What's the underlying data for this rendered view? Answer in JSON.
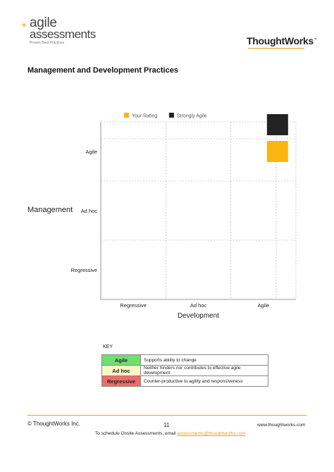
{
  "header": {
    "logo_plus": "+",
    "logo_line1": "agile",
    "logo_line2": "assessments",
    "logo_tagline": "Proven Best Practices",
    "company_logo": "ThoughtWorks",
    "company_logo_tm": "™"
  },
  "section_title": "Management and Development Practices",
  "chart_data": {
    "type": "scatter",
    "xlabel": "Development",
    "ylabel": "Management",
    "categories_x": [
      "Regressive",
      "Ad hoc",
      "Agile"
    ],
    "categories_y": [
      "Regressive",
      "Ad hoc",
      "Agile"
    ],
    "series": [
      {
        "name": "Your Rating",
        "color": "#fbb511",
        "points": [
          {
            "x": "Agile",
            "y": "Agile"
          }
        ]
      },
      {
        "name": "Strongly Agile",
        "color": "#232323",
        "points": [
          {
            "x": "Agile",
            "y": "Agile"
          }
        ]
      }
    ],
    "legend_position": "top",
    "grid": true
  },
  "key": {
    "label": "KEY",
    "rows": [
      {
        "name": "Agile",
        "description": "Supports ability to change",
        "color": "#6fe06f"
      },
      {
        "name": "Ad hoc",
        "description": "Neither hinders nor contributes to effective agile development",
        "color": "#fbf8c8"
      },
      {
        "name": "Regressive",
        "description": "Counter-productive to agility and responsiveness",
        "color": "#f06a6a"
      }
    ]
  },
  "footer": {
    "copyright": "© ThoughtWorks Inc.",
    "page_number": "11",
    "website": "www.thoughtworks.com",
    "note_prefix": "To schedule Onsite Assessments, email ",
    "note_email": "assessments@thoughtworks.com"
  }
}
